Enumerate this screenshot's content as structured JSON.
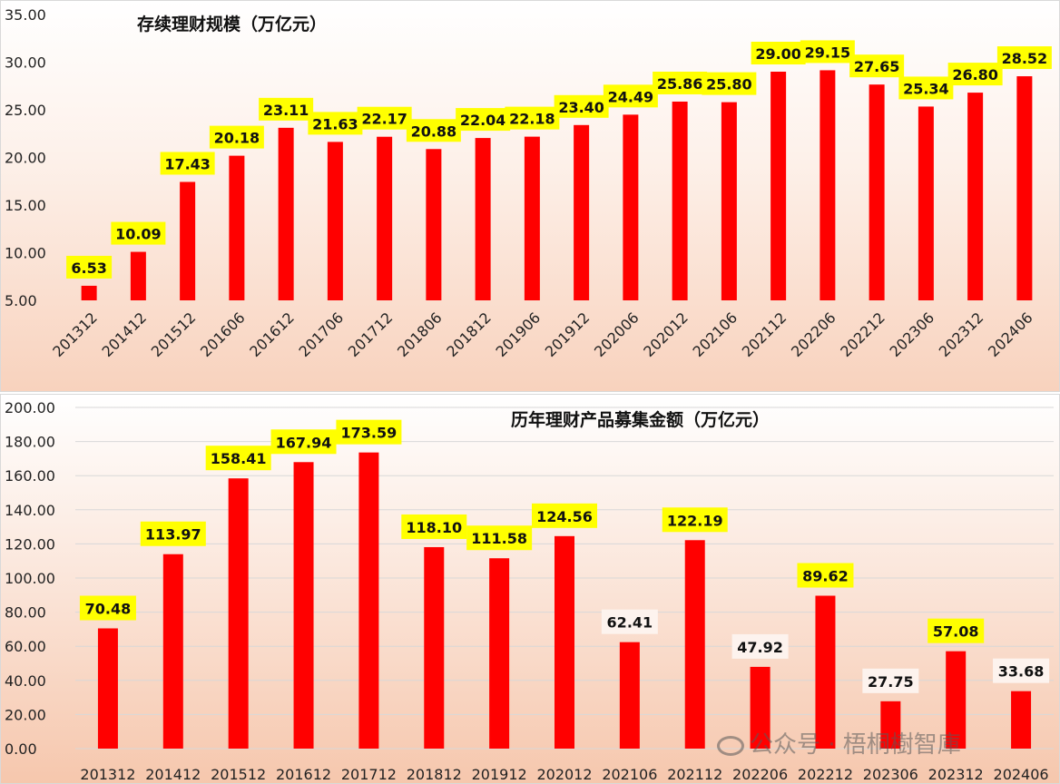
{
  "chart_data": [
    {
      "type": "bar",
      "title": "存续理财规模（万亿元）",
      "categories": [
        "201312",
        "201412",
        "201512",
        "201606",
        "201612",
        "201706",
        "201712",
        "201806",
        "201812",
        "201906",
        "201912",
        "202006",
        "202012",
        "202106",
        "202112",
        "202206",
        "202212",
        "202306",
        "202312",
        "202406"
      ],
      "values": [
        6.53,
        10.09,
        17.43,
        20.18,
        23.11,
        21.63,
        22.17,
        20.88,
        22.04,
        22.18,
        23.4,
        24.49,
        25.86,
        25.8,
        29.0,
        29.15,
        27.65,
        25.34,
        26.8,
        28.52
      ],
      "value_labels": [
        "6.53",
        "10.09",
        "17.43",
        "20.18",
        "23.11",
        "21.63",
        "22.17",
        "20.88",
        "22.04",
        "22.18",
        "23.40",
        "24.49",
        "25.86",
        "25.80",
        "29.00",
        "29.15",
        "27.65",
        "25.34",
        "26.80",
        "28.52"
      ],
      "ylim": [
        5,
        35
      ],
      "yticks": [
        "5.00",
        "10.00",
        "15.00",
        "20.00",
        "25.00",
        "30.00",
        "35.00"
      ],
      "ytick_values": [
        5,
        10,
        15,
        20,
        25,
        30,
        35
      ],
      "bar_color": "#ff0000",
      "label_bg": "#ffff00",
      "xlabel": "",
      "ylabel": ""
    },
    {
      "type": "bar",
      "title": "历年理财产品募集金额（万亿元）",
      "categories": [
        "201312",
        "201412",
        "201512",
        "201612",
        "201712",
        "201812",
        "201912",
        "202012",
        "202106",
        "202112",
        "202206",
        "202212",
        "202306",
        "202312",
        "202406"
      ],
      "values": [
        70.48,
        113.97,
        158.41,
        167.94,
        173.59,
        118.1,
        111.58,
        124.56,
        62.41,
        122.19,
        47.92,
        89.62,
        27.75,
        57.08,
        33.68
      ],
      "value_labels": [
        "70.48",
        "113.97",
        "158.41",
        "167.94",
        "173.59",
        "118.10",
        "111.58",
        "124.56",
        "62.41",
        "122.19",
        "47.92",
        "89.62",
        "27.75",
        "57.08",
        "33.68"
      ],
      "label_highlight": [
        true,
        true,
        true,
        true,
        true,
        true,
        true,
        true,
        false,
        true,
        false,
        true,
        false,
        true,
        false
      ],
      "ylim": [
        0,
        200
      ],
      "yticks": [
        "0.00",
        "20.00",
        "40.00",
        "60.00",
        "80.00",
        "100.00",
        "120.00",
        "140.00",
        "160.00",
        "180.00",
        "200.00"
      ],
      "ytick_values": [
        0,
        20,
        40,
        60,
        80,
        100,
        120,
        140,
        160,
        180,
        200
      ],
      "bar_color": "#ff0000",
      "label_bg": "#ffff00",
      "label_bg_plain": "#fdf3ee",
      "grid": true,
      "xlabel": "",
      "ylabel": ""
    }
  ],
  "watermark": {
    "text": "公众号 · 梧桐樹智庫"
  }
}
